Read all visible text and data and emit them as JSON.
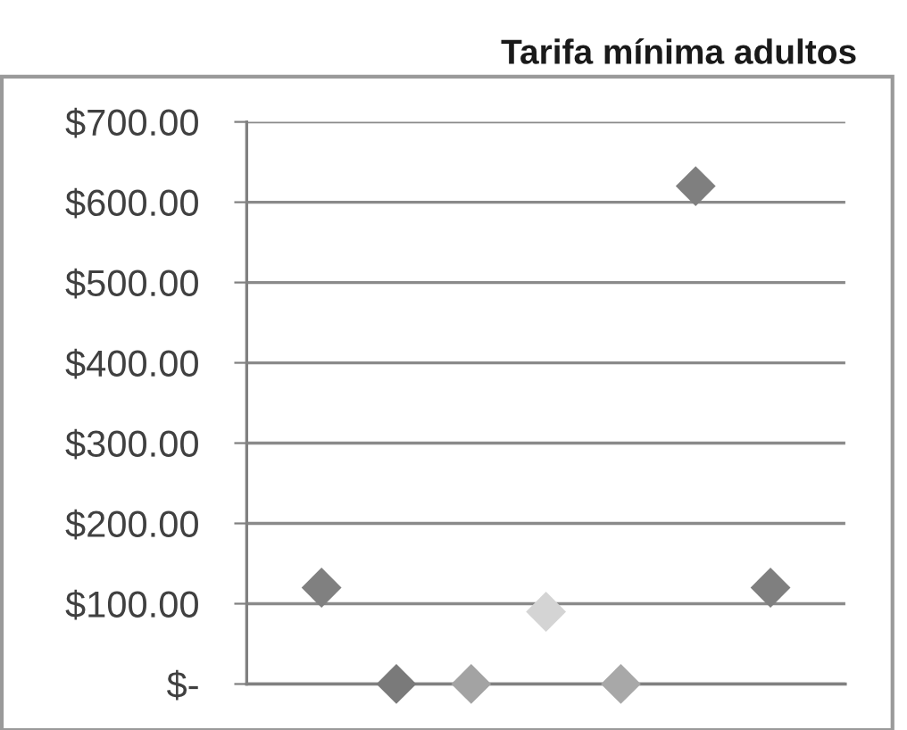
{
  "chart_data": {
    "type": "scatter",
    "title": "Tarifa mínima adultos",
    "categories": [
      null,
      null,
      null,
      null,
      null,
      null,
      null
    ],
    "values": [
      120,
      0,
      0,
      90,
      0,
      620,
      120
    ],
    "colors": [
      "#808080",
      "#7a7a7a",
      "#a3a3a3",
      "#d4d4d4",
      "#a8a8a8",
      "#7f7f7f",
      "#7f7f7f"
    ],
    "marker": "diamond",
    "grid": "y",
    "ylim": [
      0,
      700
    ],
    "yticks": [
      {
        "value": 0,
        "label": "$-"
      },
      {
        "value": 100,
        "label": "$100.00"
      },
      {
        "value": 200,
        "label": "$200.00"
      },
      {
        "value": 300,
        "label": "$300.00"
      },
      {
        "value": 400,
        "label": "$400.00"
      },
      {
        "value": 500,
        "label": "$500.00"
      },
      {
        "value": 600,
        "label": "$600.00"
      },
      {
        "value": 700,
        "label": "$700.00"
      }
    ]
  }
}
